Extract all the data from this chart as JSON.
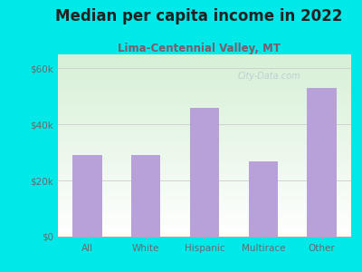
{
  "title": "Median per capita income in 2022",
  "subtitle": "Lima-Centennial Valley, MT",
  "categories": [
    "All",
    "White",
    "Hispanic",
    "Multirace",
    "Other"
  ],
  "values": [
    29000,
    29000,
    46000,
    27000,
    53000
  ],
  "bar_color": "#b8a0d8",
  "background_color": "#00e8e8",
  "plot_bg_top_left": "#d8f0d8",
  "plot_bg_bottom": "#ffffff",
  "ylim": [
    0,
    65000
  ],
  "yticks": [
    0,
    20000,
    40000,
    60000
  ],
  "ytick_labels": [
    "$0",
    "$20k",
    "$40k",
    "$60k"
  ],
  "title_fontsize": 12,
  "subtitle_fontsize": 8.5,
  "title_color": "#222222",
  "subtitle_color": "#7a5c6a",
  "tick_color": "#6a6a6a",
  "watermark": "City-Data.com"
}
